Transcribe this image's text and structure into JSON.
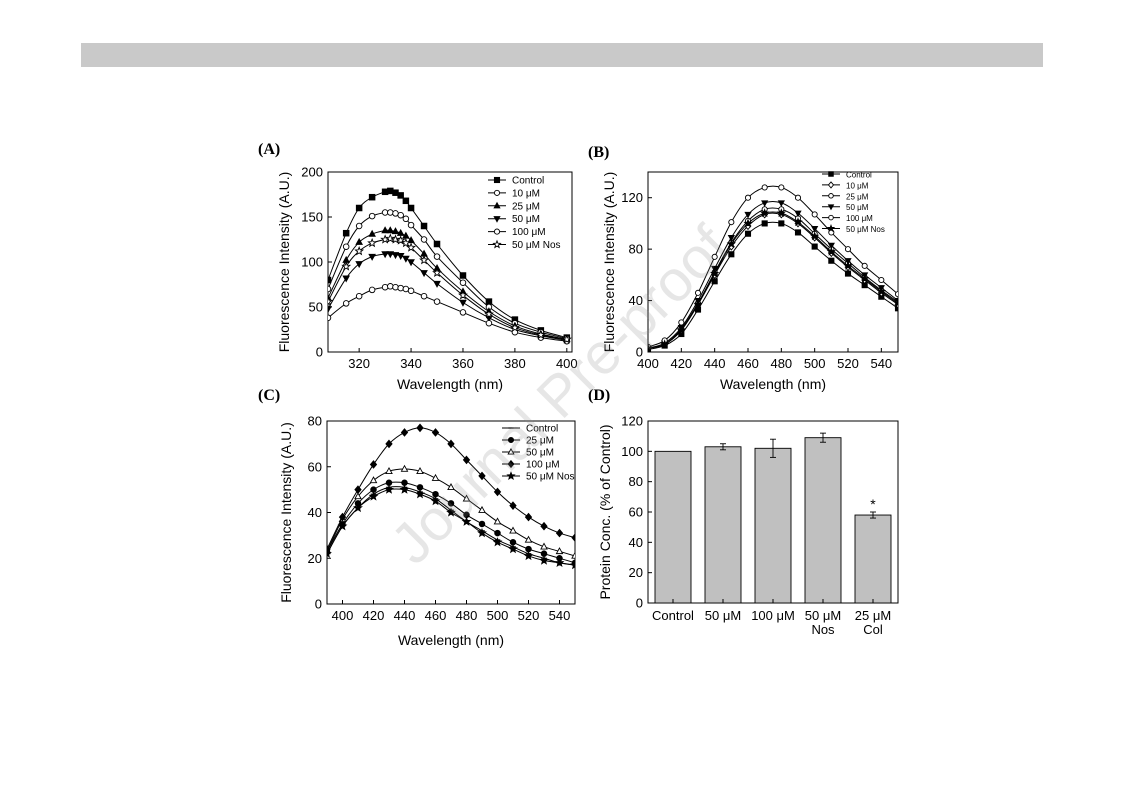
{
  "watermark": "Journal Pre-proof",
  "chart_data": [
    {
      "panel": "(A)",
      "type": "line",
      "xlabel": "Wavelength (nm)",
      "ylabel": "Fluorescence Intensity (A.U.)",
      "xlim": [
        308,
        402
      ],
      "ylim": [
        0,
        200
      ],
      "xticks": [
        320,
        340,
        360,
        380,
        400
      ],
      "yticks": [
        0,
        50,
        100,
        150,
        200
      ],
      "legend_position": "top-right",
      "x": [
        308,
        315,
        320,
        325,
        330,
        332,
        334,
        336,
        338,
        340,
        345,
        350,
        360,
        370,
        380,
        390,
        400
      ],
      "series": [
        {
          "name": "Control",
          "marker": "square-filled",
          "values": [
            80,
            132,
            160,
            172,
            178,
            179,
            177,
            174,
            168,
            160,
            140,
            120,
            85,
            56,
            36,
            24,
            16
          ]
        },
        {
          "name": "10 μM",
          "marker": "circle-open",
          "values": [
            70,
            117,
            140,
            151,
            155,
            155,
            154,
            152,
            148,
            141,
            125,
            106,
            77,
            50,
            32,
            22,
            15
          ]
        },
        {
          "name": "25 μM",
          "marker": "triangle-up-filled",
          "values": [
            60,
            102,
            122,
            131,
            135,
            135,
            134,
            132,
            129,
            124,
            109,
            93,
            67,
            45,
            29,
            20,
            14
          ]
        },
        {
          "name": "50 μM",
          "marker": "triangle-down-filled",
          "values": [
            48,
            82,
            98,
            106,
            109,
            109,
            108,
            107,
            104,
            100,
            88,
            76,
            55,
            38,
            25,
            18,
            13
          ]
        },
        {
          "name": "100 μM",
          "marker": "circle-open",
          "values": [
            38,
            54,
            62,
            69,
            72,
            73,
            72,
            71,
            70,
            68,
            62,
            56,
            44,
            32,
            22,
            16,
            12
          ]
        },
        {
          "name": "50 μM Nos",
          "marker": "star-open",
          "values": [
            56,
            95,
            112,
            121,
            125,
            126,
            125,
            124,
            121,
            116,
            102,
            88,
            63,
            42,
            27,
            19,
            14
          ]
        }
      ]
    },
    {
      "panel": "(B)",
      "type": "line",
      "xlabel": "Wavelength (nm)",
      "ylabel": "Fluorescence Intensity (A.U.)",
      "xlim": [
        400,
        550
      ],
      "ylim": [
        0,
        140
      ],
      "xticks": [
        400,
        420,
        440,
        460,
        480,
        500,
        520,
        540
      ],
      "yticks": [
        0,
        40,
        80,
        120
      ],
      "legend_position": "top-right",
      "x": [
        400,
        410,
        420,
        430,
        440,
        450,
        460,
        470,
        480,
        490,
        500,
        510,
        520,
        530,
        540,
        550
      ],
      "series": [
        {
          "name": "Control",
          "marker": "square-filled",
          "values": [
            2,
            5,
            14,
            33,
            55,
            76,
            92,
            100,
            100,
            93,
            82,
            71,
            61,
            52,
            43,
            34
          ]
        },
        {
          "name": "10 μM",
          "marker": "diamond-open",
          "values": [
            3,
            6,
            17,
            37,
            60,
            82,
            98,
            107,
            107,
            100,
            89,
            77,
            66,
            56,
            46,
            37
          ]
        },
        {
          "name": "25 μM",
          "marker": "circle-open",
          "values": [
            3,
            6,
            18,
            38,
            62,
            85,
            102,
            111,
            111,
            104,
            92,
            80,
            69,
            58,
            48,
            39
          ]
        },
        {
          "name": "50 μM",
          "marker": "triangle-down-filled",
          "values": [
            3,
            7,
            19,
            40,
            65,
            89,
            107,
            116,
            116,
            108,
            96,
            83,
            71,
            60,
            50,
            40
          ]
        },
        {
          "name": "100 μM",
          "marker": "circle-open",
          "values": [
            4,
            9,
            23,
            46,
            74,
            101,
            120,
            128,
            128,
            120,
            107,
            93,
            80,
            67,
            56,
            45
          ]
        },
        {
          "name": "50 μM Nos",
          "marker": "star-filled",
          "values": [
            3,
            6,
            17,
            37,
            61,
            84,
            100,
            108,
            108,
            101,
            90,
            78,
            67,
            57,
            47,
            38
          ]
        }
      ]
    },
    {
      "panel": "(C)",
      "type": "line",
      "xlabel": "Wavelength (nm)",
      "ylabel": "Fluorescence Intensity (A.U.)",
      "xlim": [
        390,
        550
      ],
      "ylim": [
        0,
        80
      ],
      "xticks": [
        400,
        420,
        440,
        460,
        480,
        500,
        520,
        540
      ],
      "yticks": [
        0,
        20,
        40,
        60,
        80
      ],
      "legend_position": "top-right",
      "x": [
        390,
        400,
        410,
        420,
        430,
        440,
        450,
        460,
        470,
        480,
        490,
        500,
        510,
        520,
        530,
        540,
        550
      ],
      "series": [
        {
          "name": "Control",
          "marker": "dash",
          "values": [
            22,
            34,
            42,
            48,
            51,
            51,
            49,
            46,
            41,
            36,
            32,
            28,
            25,
            22,
            20,
            18,
            17
          ]
        },
        {
          "name": "25 μM",
          "marker": "circle-filled",
          "values": [
            23,
            35,
            44,
            50,
            53,
            53,
            51,
            48,
            44,
            39,
            35,
            31,
            27,
            24,
            22,
            20,
            18
          ]
        },
        {
          "name": "50 μM",
          "marker": "triangle-up-open",
          "values": [
            23,
            37,
            47,
            54,
            58,
            59,
            58,
            55,
            51,
            46,
            41,
            36,
            32,
            28,
            25,
            23,
            21
          ]
        },
        {
          "name": "100 μM",
          "marker": "diamond-filled",
          "values": [
            24,
            38,
            50,
            61,
            70,
            75,
            77,
            75,
            70,
            63,
            56,
            49,
            43,
            38,
            34,
            31,
            29
          ]
        },
        {
          "name": "50 μM Nos",
          "marker": "star-filled",
          "values": [
            22,
            34,
            42,
            47,
            50,
            50,
            48,
            45,
            40,
            36,
            31,
            27,
            24,
            21,
            19,
            18,
            17
          ]
        }
      ]
    },
    {
      "panel": "(D)",
      "type": "bar",
      "ylabel": "Protein Conc. (% of Control)",
      "ylim": [
        0,
        120
      ],
      "yticks": [
        0,
        20,
        40,
        60,
        80,
        100,
        120
      ],
      "categories": [
        [
          "Control"
        ],
        [
          "50 μM"
        ],
        [
          "100 μM"
        ],
        [
          "50 μM",
          "Nos"
        ],
        [
          "25 μM",
          "Col"
        ]
      ],
      "values": [
        100,
        103,
        102,
        109,
        58
      ],
      "errors": [
        0,
        2,
        6,
        3,
        2
      ],
      "annotations": [
        "",
        "",
        "",
        "",
        "*"
      ],
      "bar_color": "#c0c0c0"
    }
  ]
}
